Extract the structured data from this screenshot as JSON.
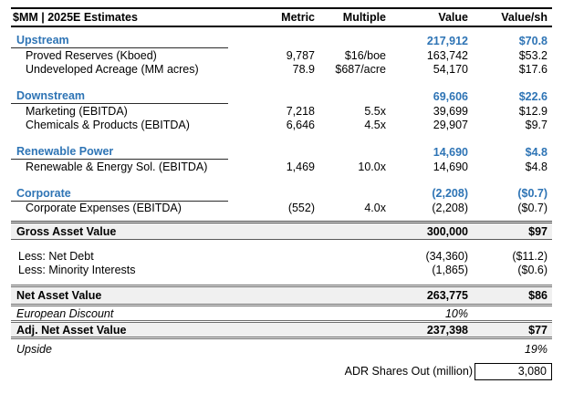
{
  "accent_color": "#2E74B5",
  "band_color": "#F0F0F0",
  "table": {
    "header": {
      "label": "$MM | 2025E Estimates",
      "metric": "Metric",
      "multiple": "Multiple",
      "value": "Value",
      "value_sh": "Value/sh"
    },
    "sections": [
      {
        "name": "Upstream",
        "value": "217,912",
        "value_sh": "$70.8",
        "rows": [
          {
            "label": "Proved Reserves (Kboed)",
            "metric": "9,787",
            "multiple": "$16/boe",
            "value": "163,742",
            "value_sh": "$53.2"
          },
          {
            "label": "Undeveloped Acreage (MM acres)",
            "metric": "78.9",
            "multiple": "$687/acre",
            "value": "54,170",
            "value_sh": "$17.6"
          }
        ]
      },
      {
        "name": "Downstream",
        "value": "69,606",
        "value_sh": "$22.6",
        "rows": [
          {
            "label": "Marketing (EBITDA)",
            "metric": "7,218",
            "multiple": "5.5x",
            "value": "39,699",
            "value_sh": "$12.9"
          },
          {
            "label": "Chemicals & Products (EBITDA)",
            "metric": "6,646",
            "multiple": "4.5x",
            "value": "29,907",
            "value_sh": "$9.7"
          }
        ]
      },
      {
        "name": "Renewable Power",
        "value": "14,690",
        "value_sh": "$4.8",
        "rows": [
          {
            "label": "Renewable & Energy Sol. (EBITDA)",
            "metric": "1,469",
            "multiple": "10.0x",
            "value": "14,690",
            "value_sh": "$4.8"
          }
        ]
      },
      {
        "name": "Corporate",
        "value": "(2,208)",
        "value_sh": "($0.7)",
        "rows": [
          {
            "label": "Corporate Expenses (EBITDA)",
            "metric": "(552)",
            "multiple": "4.0x",
            "value": "(2,208)",
            "value_sh": "($0.7)"
          }
        ]
      }
    ],
    "totals": {
      "gross_asset_value": {
        "label": "Gross Asset Value",
        "value": "300,000",
        "value_sh": "$97"
      },
      "less_net_debt": {
        "label": "Less: Net Debt",
        "value": "(34,360)",
        "value_sh": "($11.2)"
      },
      "less_minority_interests": {
        "label": "Less: Minority Interests",
        "value": "(1,865)",
        "value_sh": "($0.6)"
      },
      "net_asset_value": {
        "label": "Net Asset Value",
        "value": "263,775",
        "value_sh": "$86"
      },
      "european_discount": {
        "label": "European Discount",
        "value": "10%"
      },
      "adj_net_asset_value": {
        "label": "Adj. Net Asset Value",
        "value": "237,398",
        "value_sh": "$77"
      },
      "upside": {
        "label": "Upside",
        "value_sh": "19%"
      }
    },
    "footer": {
      "adr_label": "ADR Shares Out (million)",
      "adr_value": "3,080"
    }
  }
}
